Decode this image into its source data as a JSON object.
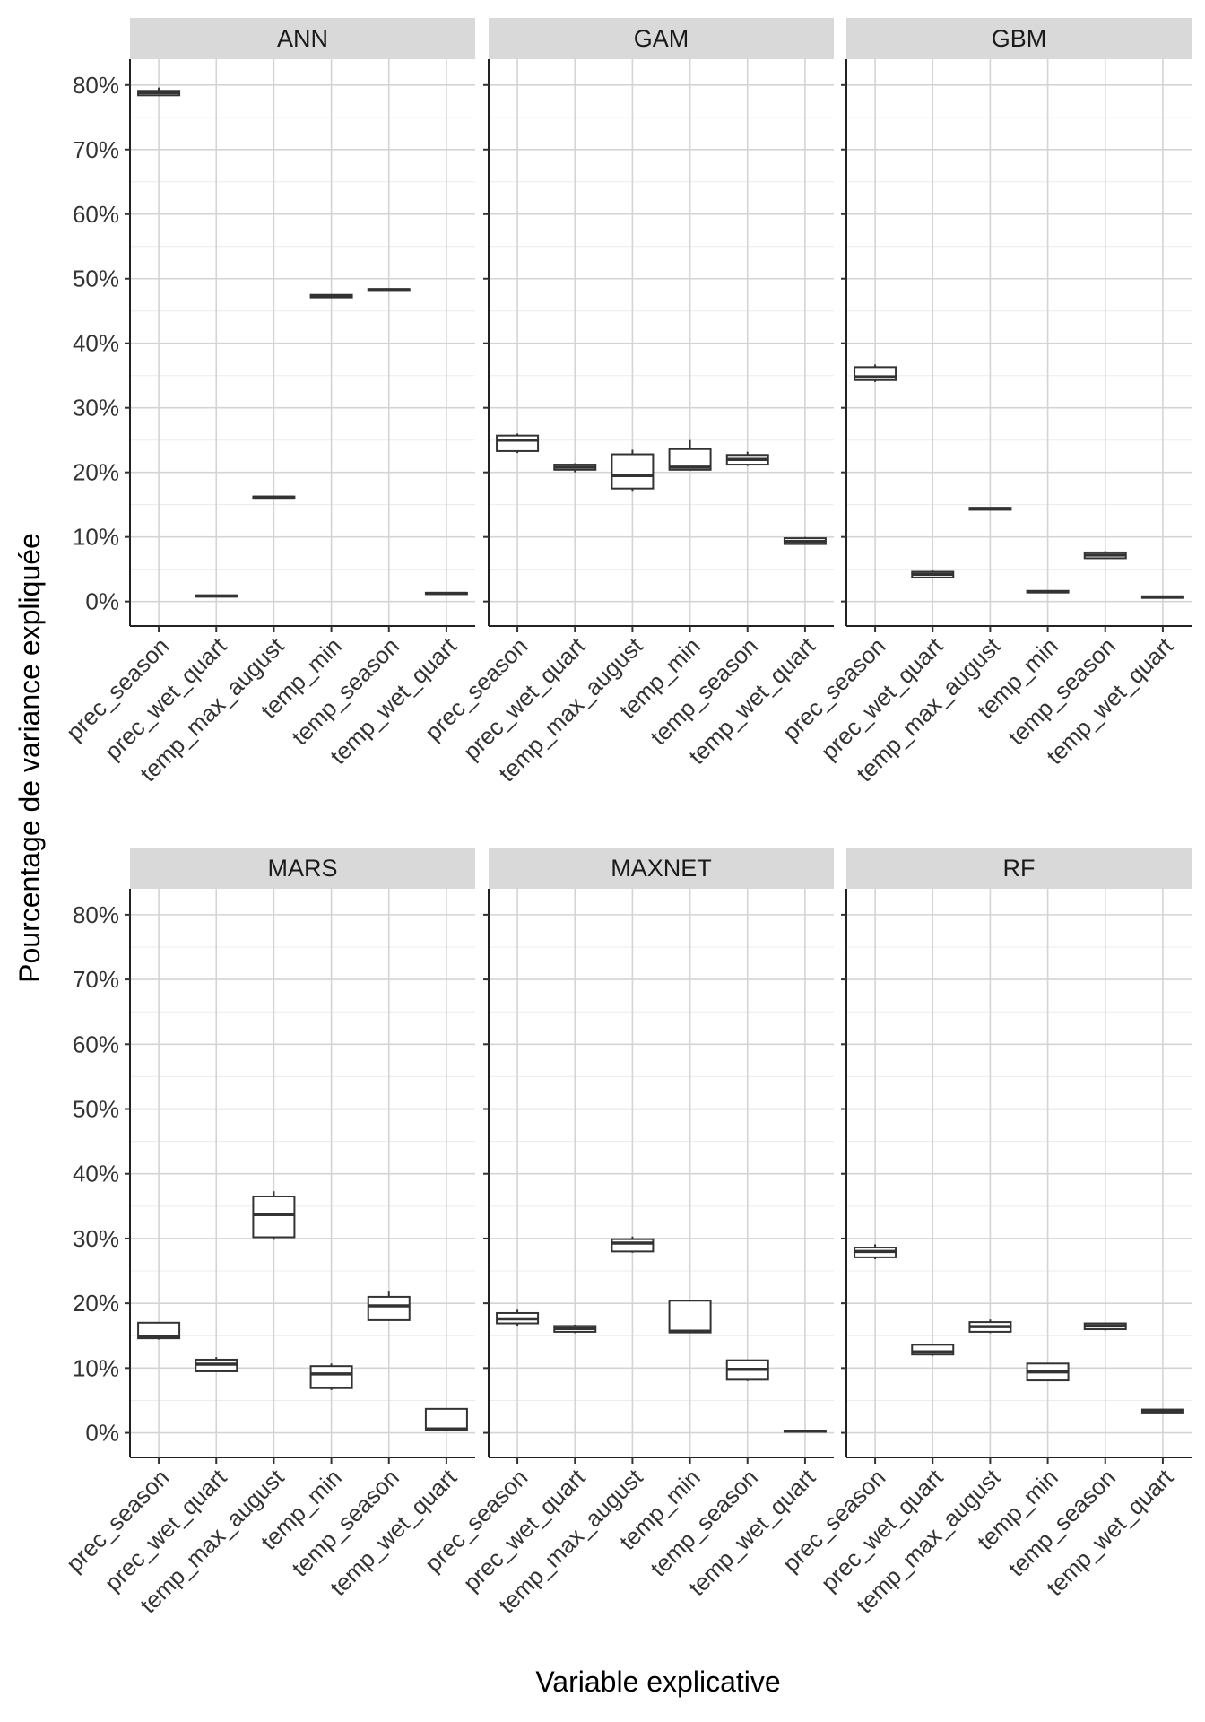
{
  "chart_data": {
    "type": "boxplot",
    "facet_layout": "3 columns x 2 rows",
    "xlabel": "Variable explicative",
    "ylabel": "Pourcentage de variance expliquée",
    "categories": [
      "prec_season",
      "prec_wet_quart",
      "temp_max_august",
      "temp_min",
      "temp_season",
      "temp_wet_quart"
    ],
    "yticks": [
      0,
      10,
      20,
      30,
      40,
      50,
      60,
      70,
      80
    ],
    "ytick_labels": [
      "0%",
      "10%",
      "20%",
      "30%",
      "40%",
      "50%",
      "60%",
      "70%",
      "80%"
    ],
    "ylim": [
      -3.8,
      84
    ],
    "panels": [
      {
        "name": "ANN",
        "boxes": [
          {
            "category": "prec_season",
            "min": 78.3,
            "q1": 78.4,
            "median": 78.8,
            "q3": 79.1,
            "max": 79.6
          },
          {
            "category": "prec_wet_quart",
            "min": 0.7,
            "q1": 0.75,
            "median": 0.85,
            "q3": 0.95,
            "max": 1.0
          },
          {
            "category": "temp_max_august",
            "min": 16.0,
            "q1": 16.05,
            "median": 16.15,
            "q3": 16.25,
            "max": 16.3
          },
          {
            "category": "temp_min",
            "min": 47.0,
            "q1": 47.1,
            "median": 47.3,
            "q3": 47.5,
            "max": 47.6
          },
          {
            "category": "temp_season",
            "min": 48.0,
            "q1": 48.1,
            "median": 48.3,
            "q3": 48.4,
            "max": 48.5
          },
          {
            "category": "temp_wet_quart",
            "min": 1.1,
            "q1": 1.15,
            "median": 1.25,
            "q3": 1.35,
            "max": 1.4
          }
        ]
      },
      {
        "name": "GAM",
        "boxes": [
          {
            "category": "prec_season",
            "min": 23.0,
            "q1": 23.3,
            "median": 25.0,
            "q3": 25.7,
            "max": 26.0
          },
          {
            "category": "prec_wet_quart",
            "min": 20.0,
            "q1": 20.4,
            "median": 20.8,
            "q3": 21.2,
            "max": 21.4
          },
          {
            "category": "temp_max_august",
            "min": 17.0,
            "q1": 17.5,
            "median": 19.5,
            "q3": 22.8,
            "max": 23.5
          },
          {
            "category": "temp_min",
            "min": 20.3,
            "q1": 20.4,
            "median": 20.8,
            "q3": 23.6,
            "max": 25.0
          },
          {
            "category": "temp_season",
            "min": 21.0,
            "q1": 21.2,
            "median": 22.0,
            "q3": 22.7,
            "max": 23.2
          },
          {
            "category": "temp_wet_quart",
            "min": 8.8,
            "q1": 8.9,
            "median": 9.3,
            "q3": 9.8,
            "max": 10.0
          }
        ]
      },
      {
        "name": "GBM",
        "boxes": [
          {
            "category": "prec_season",
            "min": 34.0,
            "q1": 34.3,
            "median": 34.8,
            "q3": 36.3,
            "max": 36.7
          },
          {
            "category": "prec_wet_quart",
            "min": 3.6,
            "q1": 3.7,
            "median": 4.2,
            "q3": 4.6,
            "max": 4.8
          },
          {
            "category": "temp_max_august",
            "min": 14.1,
            "q1": 14.2,
            "median": 14.4,
            "q3": 14.5,
            "max": 14.6
          },
          {
            "category": "temp_min",
            "min": 1.3,
            "q1": 1.4,
            "median": 1.5,
            "q3": 1.65,
            "max": 1.7
          },
          {
            "category": "temp_season",
            "min": 6.6,
            "q1": 6.7,
            "median": 7.2,
            "q3": 7.6,
            "max": 7.8
          },
          {
            "category": "temp_wet_quart",
            "min": 0.5,
            "q1": 0.55,
            "median": 0.7,
            "q3": 0.8,
            "max": 0.9
          }
        ]
      },
      {
        "name": "MARS",
        "boxes": [
          {
            "category": "prec_season",
            "min": 14.4,
            "q1": 14.6,
            "median": 14.9,
            "q3": 17.0,
            "max": 17.0
          },
          {
            "category": "prec_wet_quart",
            "min": 9.4,
            "q1": 9.5,
            "median": 10.6,
            "q3": 11.3,
            "max": 11.7
          },
          {
            "category": "temp_max_august",
            "min": 29.8,
            "q1": 30.2,
            "median": 33.7,
            "q3": 36.5,
            "max": 37.3
          },
          {
            "category": "temp_min",
            "min": 6.6,
            "q1": 6.9,
            "median": 9.1,
            "q3": 10.3,
            "max": 10.7
          },
          {
            "category": "temp_season",
            "min": 17.3,
            "q1": 17.4,
            "median": 19.6,
            "q3": 21.0,
            "max": 21.8
          },
          {
            "category": "temp_wet_quart",
            "min": 0.3,
            "q1": 0.4,
            "median": 0.6,
            "q3": 3.7,
            "max": 3.7
          }
        ]
      },
      {
        "name": "MAXNET",
        "boxes": [
          {
            "category": "prec_season",
            "min": 16.5,
            "q1": 16.9,
            "median": 17.6,
            "q3": 18.5,
            "max": 19.0
          },
          {
            "category": "prec_wet_quart",
            "min": 15.4,
            "q1": 15.6,
            "median": 16.1,
            "q3": 16.5,
            "max": 16.7
          },
          {
            "category": "temp_max_august",
            "min": 27.8,
            "q1": 28.0,
            "median": 29.3,
            "q3": 29.9,
            "max": 30.3
          },
          {
            "category": "temp_min",
            "min": 15.4,
            "q1": 15.5,
            "median": 15.7,
            "q3": 20.4,
            "max": 20.4
          },
          {
            "category": "temp_season",
            "min": 8.0,
            "q1": 8.2,
            "median": 9.8,
            "q3": 11.2,
            "max": 11.2
          },
          {
            "category": "temp_wet_quart",
            "min": 0.1,
            "q1": 0.15,
            "median": 0.25,
            "q3": 0.35,
            "max": 0.4
          }
        ]
      },
      {
        "name": "RF",
        "boxes": [
          {
            "category": "prec_season",
            "min": 26.8,
            "q1": 27.1,
            "median": 28.0,
            "q3": 28.6,
            "max": 29.1
          },
          {
            "category": "prec_wet_quart",
            "min": 11.9,
            "q1": 12.1,
            "median": 12.5,
            "q3": 13.6,
            "max": 13.6
          },
          {
            "category": "temp_max_august",
            "min": 15.4,
            "q1": 15.6,
            "median": 16.4,
            "q3": 17.1,
            "max": 17.5
          },
          {
            "category": "temp_min",
            "min": 8.0,
            "q1": 8.1,
            "median": 9.4,
            "q3": 10.7,
            "max": 10.7
          },
          {
            "category": "temp_season",
            "min": 15.8,
            "q1": 16.0,
            "median": 16.5,
            "q3": 16.9,
            "max": 17.0
          },
          {
            "category": "temp_wet_quart",
            "min": 2.9,
            "q1": 3.0,
            "median": 3.3,
            "q3": 3.6,
            "max": 3.7
          }
        ]
      }
    ]
  }
}
